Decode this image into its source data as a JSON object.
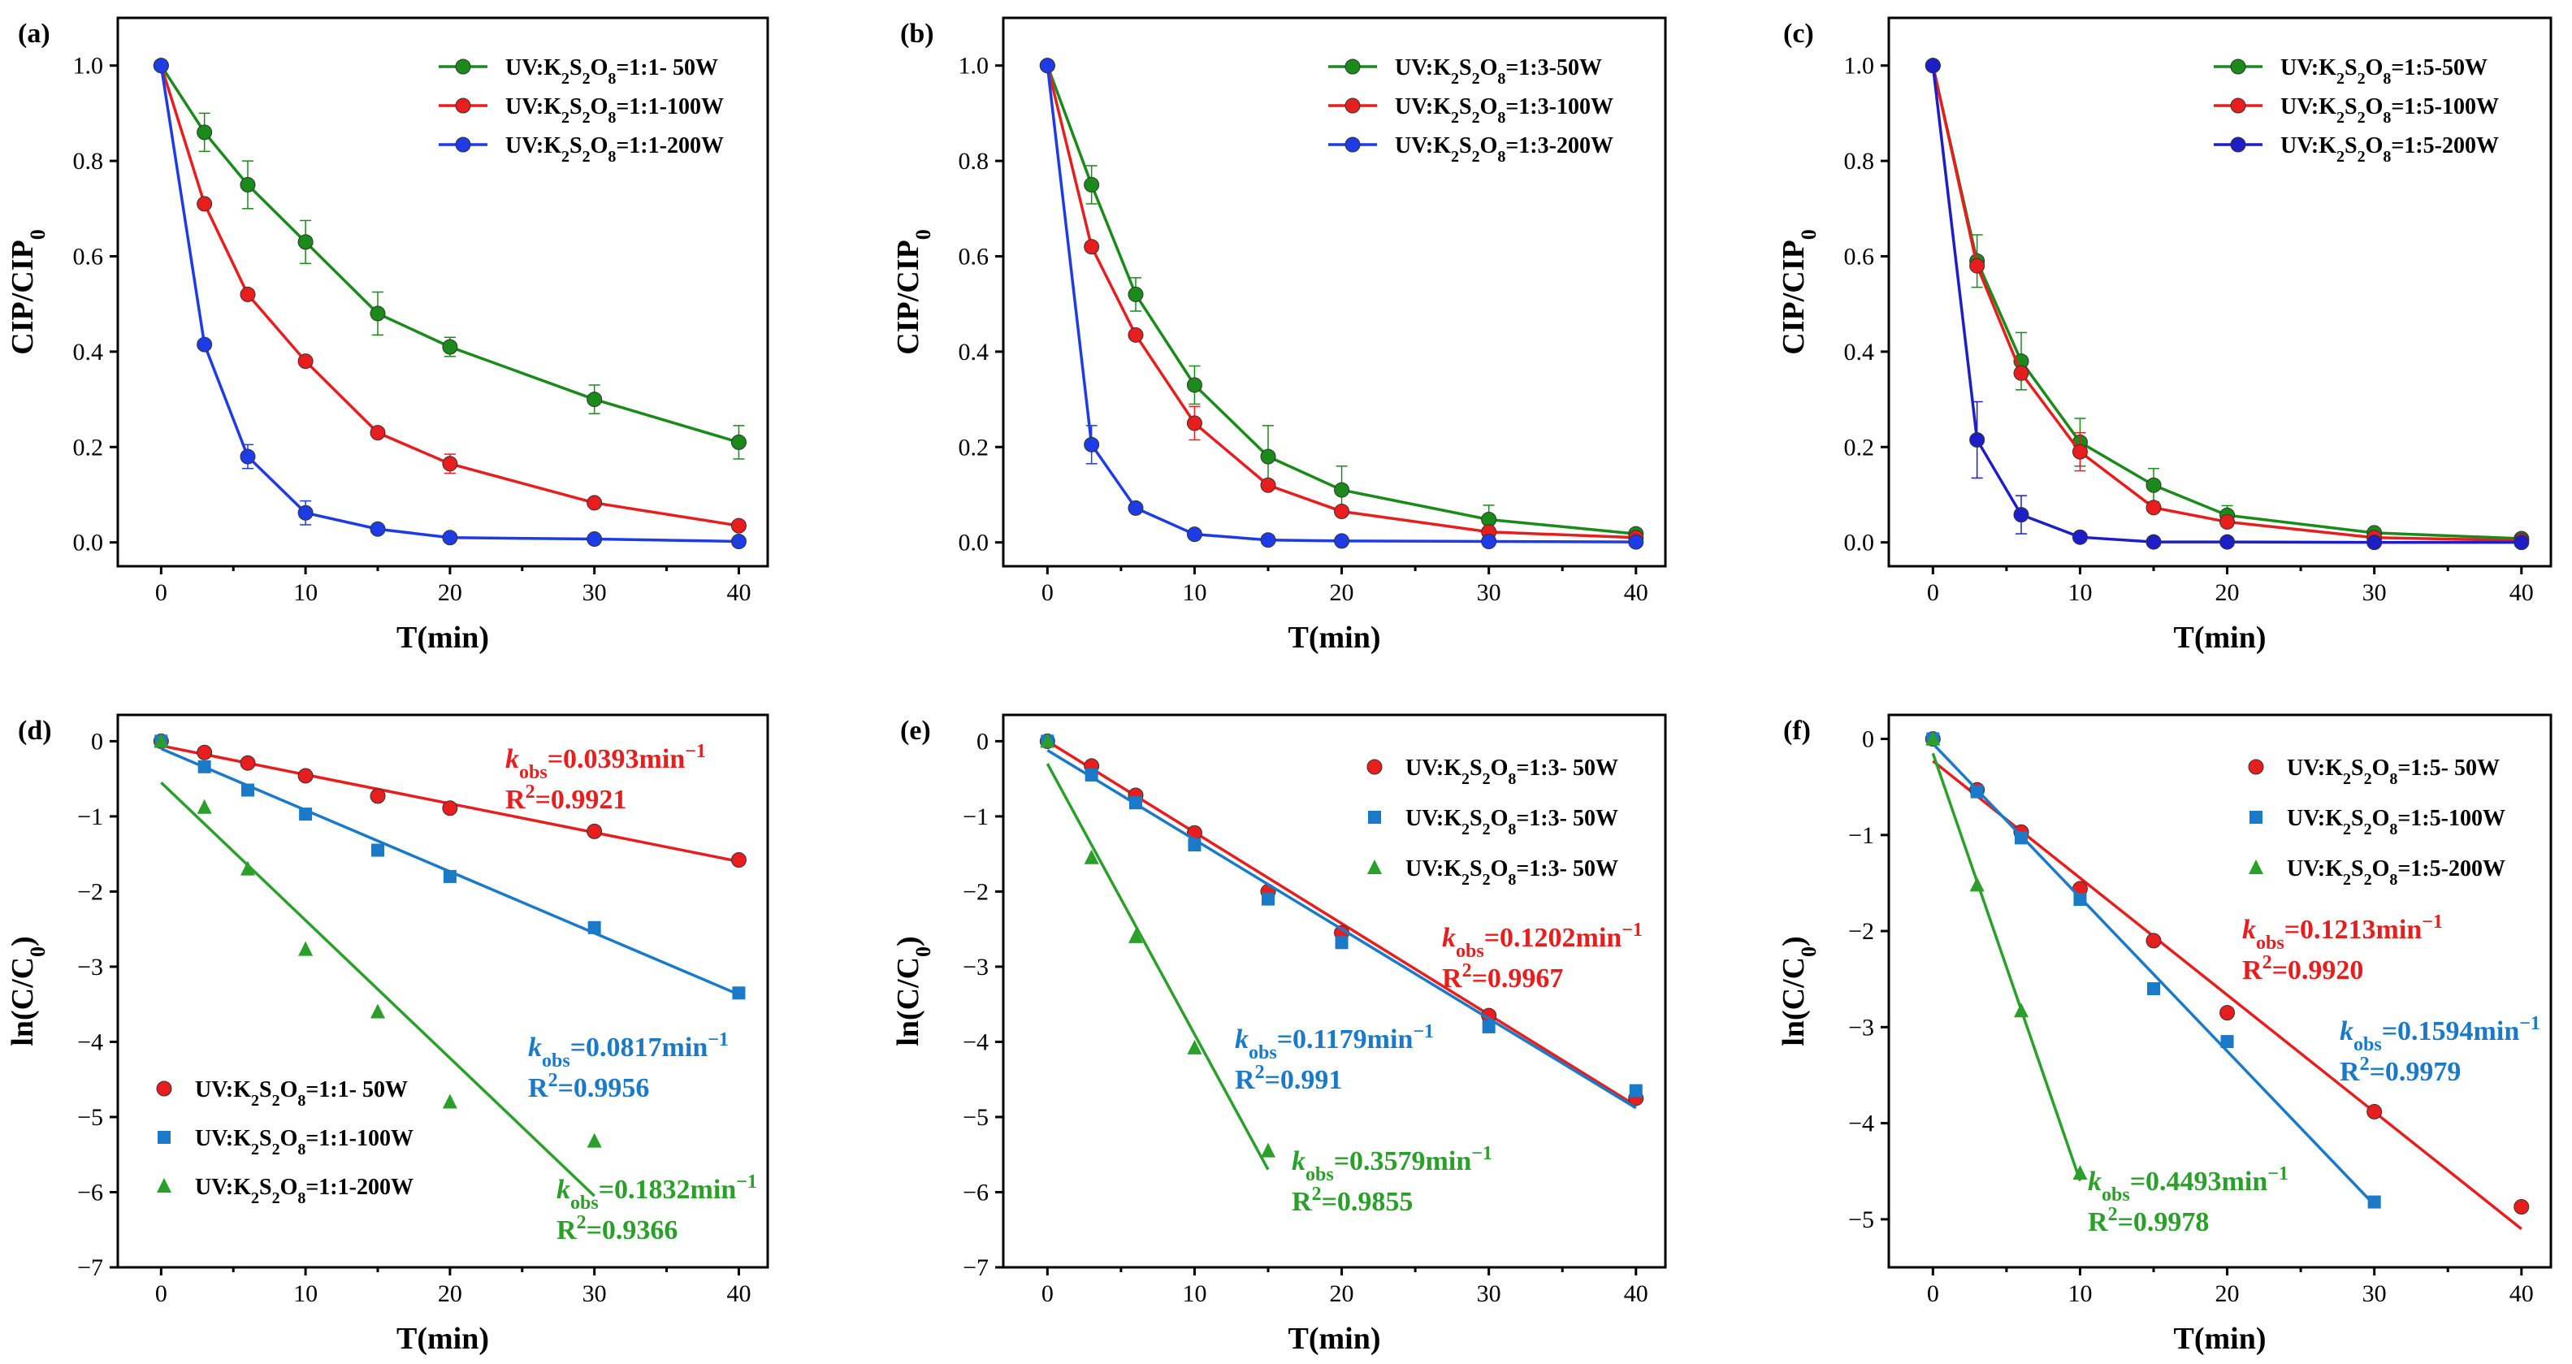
{
  "chart_data": [
    {
      "panel": "(a)",
      "type": "line",
      "xlabel": "T(min)",
      "ylabel": [
        "CIP/CIP",
        "0"
      ],
      "xlim": [
        -3,
        42
      ],
      "ylim": [
        -0.05,
        1.1
      ],
      "xticks": [
        0,
        10,
        20,
        30,
        40
      ],
      "yticks": [
        0.0,
        0.2,
        0.4,
        0.6,
        0.8,
        1.0
      ],
      "ydecimals": 1,
      "legend_position": "top-right",
      "x": [
        0,
        3,
        6,
        10,
        15,
        20,
        30,
        40
      ],
      "series": [
        {
          "name": [
            "UV:K",
            "2",
            "S",
            "2",
            "O",
            "8",
            "=1:1- 50W"
          ],
          "color": "#1a8a1a",
          "marker": "circle",
          "values": [
            1.0,
            0.86,
            0.75,
            0.63,
            0.48,
            0.41,
            0.3,
            0.21
          ],
          "errors": [
            0,
            0.04,
            0.05,
            0.045,
            0.045,
            0.02,
            0.03,
            0.035
          ]
        },
        {
          "name": [
            "UV:K",
            "2",
            "S",
            "2",
            "O",
            "8",
            "=1:1-100W"
          ],
          "color": "#e81e1e",
          "marker": "circle",
          "values": [
            1.0,
            0.71,
            0.52,
            0.38,
            0.23,
            0.165,
            0.083,
            0.035
          ],
          "errors": [
            0,
            0,
            0,
            0,
            0,
            0.02,
            0,
            0
          ]
        },
        {
          "name": [
            "UV:K",
            "2",
            "S",
            "2",
            "O",
            "8",
            "=1:1-200W"
          ],
          "color": "#1e3ce6",
          "marker": "circle",
          "values": [
            1.0,
            0.415,
            0.18,
            0.062,
            0.028,
            0.01,
            0.007,
            0.002
          ],
          "errors": [
            0,
            0,
            0.025,
            0.025,
            0,
            0,
            0,
            0
          ]
        }
      ]
    },
    {
      "panel": "(b)",
      "type": "line",
      "xlabel": "T(min)",
      "ylabel": [
        "CIP/CIP",
        "0"
      ],
      "xlim": [
        -3,
        42
      ],
      "ylim": [
        -0.05,
        1.1
      ],
      "xticks": [
        0,
        10,
        20,
        30,
        40
      ],
      "yticks": [
        0.0,
        0.2,
        0.4,
        0.6,
        0.8,
        1.0
      ],
      "ydecimals": 1,
      "legend_position": "top-right",
      "x": [
        0,
        3,
        6,
        10,
        15,
        20,
        30,
        40
      ],
      "series": [
        {
          "name": [
            "UV:K",
            "2",
            "S",
            "2",
            "O",
            "8",
            "=1:3-50W"
          ],
          "color": "#1a8a1a",
          "marker": "circle",
          "values": [
            1.0,
            0.75,
            0.52,
            0.33,
            0.18,
            0.11,
            0.048,
            0.018
          ],
          "errors": [
            0,
            0.04,
            0.035,
            0.04,
            0.065,
            0.05,
            0.03,
            0.01
          ]
        },
        {
          "name": [
            "UV:K",
            "2",
            "S",
            "2",
            "O",
            "8",
            "=1:3-100W"
          ],
          "color": "#e81e1e",
          "marker": "circle",
          "values": [
            1.0,
            0.62,
            0.435,
            0.25,
            0.12,
            0.065,
            0.022,
            0.01
          ],
          "errors": [
            0,
            0,
            0,
            0.035,
            0,
            0,
            0,
            0
          ]
        },
        {
          "name": [
            "UV:K",
            "2",
            "S",
            "2",
            "O",
            "8",
            "=1:3-200W"
          ],
          "color": "#1e3ce6",
          "marker": "circle",
          "values": [
            1.0,
            0.205,
            0.072,
            0.017,
            0.005,
            0.003,
            0.002,
            0.001
          ],
          "errors": [
            0,
            0.04,
            0,
            0,
            0,
            0,
            0,
            0
          ]
        }
      ]
    },
    {
      "panel": "(c)",
      "type": "line",
      "xlabel": "T(min)",
      "ylabel": [
        "CIP/CIP",
        "0"
      ],
      "xlim": [
        -3,
        42
      ],
      "ylim": [
        -0.05,
        1.1
      ],
      "xticks": [
        0,
        10,
        20,
        30,
        40
      ],
      "yticks": [
        0.0,
        0.2,
        0.4,
        0.6,
        0.8,
        1.0
      ],
      "ydecimals": 1,
      "legend_position": "top-right",
      "x": [
        0,
        3,
        6,
        10,
        15,
        20,
        30,
        40
      ],
      "series": [
        {
          "name": [
            "UV:K",
            "2",
            "S",
            "2",
            "O",
            "8",
            "=1:5-50W"
          ],
          "color": "#1a8a1a",
          "marker": "circle",
          "values": [
            1.0,
            0.59,
            0.38,
            0.21,
            0.12,
            0.057,
            0.02,
            0.008
          ],
          "errors": [
            0,
            0.055,
            0.06,
            0.05,
            0.035,
            0.02,
            0,
            0
          ]
        },
        {
          "name": [
            "UV:K",
            "2",
            "S",
            "2",
            "O",
            "8",
            "=1:5-100W"
          ],
          "color": "#e81e1e",
          "marker": "circle",
          "values": [
            1.0,
            0.58,
            0.355,
            0.19,
            0.073,
            0.043,
            0.01,
            0.004
          ],
          "errors": [
            0,
            0,
            0,
            0.04,
            0,
            0,
            0,
            0
          ]
        },
        {
          "name": [
            "UV:K",
            "2",
            "S",
            "2",
            "O",
            "8",
            "=1:5-200W"
          ],
          "color": "#1e1ec8",
          "marker": "circle",
          "values": [
            1.0,
            0.215,
            0.058,
            0.011,
            0.001,
            0.001,
            0.0,
            0.0
          ],
          "errors": [
            0,
            0.08,
            0.04,
            0,
            0,
            0,
            0,
            0
          ]
        }
      ]
    },
    {
      "panel": "(d)",
      "type": "scatter",
      "xlabel": "T(min)",
      "ylabel": [
        "ln(C/C",
        "0",
        ")"
      ],
      "xlim": [
        -3,
        42
      ],
      "ylim": [
        -7,
        0.35
      ],
      "xticks": [
        0,
        10,
        20,
        30,
        40
      ],
      "yticks": [
        -7,
        -6,
        -5,
        -4,
        -3,
        -2,
        -1,
        0
      ],
      "ydecimals": 0,
      "legend_position": "bottom-left",
      "series": [
        {
          "name": [
            "UV:K",
            "2",
            "S",
            "2",
            "O",
            "8",
            "=1:1- 50W"
          ],
          "color": "#e81e1e",
          "marker": "circle",
          "x": [
            0,
            3,
            6,
            10,
            15,
            20,
            30,
            40
          ],
          "values": [
            0,
            -0.15,
            -0.29,
            -0.46,
            -0.73,
            -0.89,
            -1.2,
            -1.58
          ],
          "fit": [
            [
              0,
              -0.06
            ],
            [
              40,
              -1.6
            ]
          ],
          "annotation": {
            "k": "0.0393",
            "r2": "0.9921"
          }
        },
        {
          "name": [
            "UV:K",
            "2",
            "S",
            "2",
            "O",
            "8",
            "=1:1-100W"
          ],
          "color": "#1a7ac8",
          "marker": "square",
          "x": [
            0,
            3,
            6,
            10,
            15,
            20,
            30,
            40
          ],
          "values": [
            0,
            -0.34,
            -0.65,
            -0.97,
            -1.45,
            -1.8,
            -2.48,
            -3.35
          ],
          "fit": [
            [
              0,
              -0.1
            ],
            [
              40,
              -3.37
            ]
          ],
          "annotation": {
            "k": "0.0817",
            "r2": "0.9956"
          }
        },
        {
          "name": [
            "UV:K",
            "2",
            "S",
            "2",
            "O",
            "8",
            "=1:1-200W"
          ],
          "color": "#2aa02a",
          "marker": "triangle",
          "x": [
            0,
            3,
            6,
            10,
            15,
            20,
            30
          ],
          "values": [
            0,
            -0.88,
            -1.7,
            -2.77,
            -3.6,
            -4.8,
            -5.32
          ],
          "fit": [
            [
              0,
              -0.55
            ],
            [
              30,
              -6.05
            ]
          ],
          "annotation": {
            "k": "0.1832",
            "r2": "0.9366"
          }
        }
      ]
    },
    {
      "panel": "(e)",
      "type": "scatter",
      "xlabel": "T(min)",
      "ylabel": [
        "ln(C/C",
        "0",
        ")"
      ],
      "xlim": [
        -3,
        42
      ],
      "ylim": [
        -7,
        0.35
      ],
      "xticks": [
        0,
        10,
        20,
        30,
        40
      ],
      "yticks": [
        -7,
        -6,
        -5,
        -4,
        -3,
        -2,
        -1,
        0
      ],
      "ydecimals": 0,
      "legend_position": "top-right",
      "series": [
        {
          "name": [
            "UV:K",
            "2",
            "S",
            "2",
            "O",
            "8",
            "=1:3- 50W"
          ],
          "color": "#e81e1e",
          "marker": "circle",
          "x": [
            0,
            3,
            6,
            10,
            15,
            20,
            30,
            40
          ],
          "values": [
            0,
            -0.33,
            -0.72,
            -1.22,
            -2.0,
            -2.55,
            -3.65,
            -4.75
          ],
          "fit": [
            [
              0,
              0.0
            ],
            [
              40,
              -4.85
            ]
          ],
          "annotation": {
            "k": "0.1202",
            "r2": "0.9967"
          }
        },
        {
          "name": [
            "UV:K",
            "2",
            "S",
            "2",
            "O",
            "8",
            "=1:3- 50W"
          ],
          "color": "#1a7ac8",
          "marker": "square",
          "x": [
            0,
            3,
            6,
            10,
            15,
            20,
            30,
            40
          ],
          "values": [
            0,
            -0.45,
            -0.82,
            -1.38,
            -2.1,
            -2.68,
            -3.8,
            -4.65
          ],
          "fit": [
            [
              0,
              -0.12
            ],
            [
              40,
              -4.88
            ]
          ],
          "annotation": {
            "k": "0.1179",
            "r2": "0.991"
          }
        },
        {
          "name": [
            "UV:K",
            "2",
            "S",
            "2",
            "O",
            "8",
            "=1:3- 50W"
          ],
          "color": "#2aa02a",
          "marker": "triangle",
          "x": [
            0,
            3,
            6,
            10,
            15
          ],
          "values": [
            0,
            -1.55,
            -2.6,
            -4.08,
            -5.45
          ],
          "fit": [
            [
              0,
              -0.3
            ],
            [
              15,
              -5.7
            ]
          ],
          "annotation": {
            "k": "0.3579",
            "r2": "0.9855"
          }
        }
      ]
    },
    {
      "panel": "(f)",
      "type": "scatter",
      "xlabel": "T(min)",
      "ylabel": [
        "ln(C/C",
        "0",
        ")"
      ],
      "xlim": [
        -3,
        42
      ],
      "ylim": [
        -5.5,
        0.25
      ],
      "xticks": [
        0,
        10,
        20,
        30,
        40
      ],
      "yticks": [
        -5,
        -4,
        -3,
        -2,
        -1,
        0
      ],
      "ydecimals": 0,
      "legend_position": "top-right",
      "series": [
        {
          "name": [
            "UV:K",
            "2",
            "S",
            "2",
            "O",
            "8",
            "=1:5- 50W"
          ],
          "color": "#e81e1e",
          "marker": "circle",
          "x": [
            0,
            3,
            6,
            10,
            15,
            20,
            30,
            40
          ],
          "values": [
            0,
            -0.53,
            -0.97,
            -1.56,
            -2.1,
            -2.85,
            -3.88,
            -4.87
          ],
          "fit": [
            [
              0,
              -0.23
            ],
            [
              40,
              -5.1
            ]
          ],
          "annotation": {
            "k": "0.1213",
            "r2": "0.9920"
          }
        },
        {
          "name": [
            "UV:K",
            "2",
            "S",
            "2",
            "O",
            "8",
            "=1:5-100W"
          ],
          "color": "#1a7ac8",
          "marker": "square",
          "x": [
            0,
            3,
            6,
            10,
            15,
            20,
            30
          ],
          "values": [
            0,
            -0.55,
            -1.03,
            -1.67,
            -2.6,
            -3.15,
            -4.82
          ],
          "fit": [
            [
              0,
              -0.05
            ],
            [
              30,
              -4.85
            ]
          ],
          "annotation": {
            "k": "0.1594",
            "r2": "0.9979"
          }
        },
        {
          "name": [
            "UV:K",
            "2",
            "S",
            "2",
            "O",
            "8",
            "=1:5-200W"
          ],
          "color": "#2aa02a",
          "marker": "triangle",
          "x": [
            0,
            3,
            6,
            10
          ],
          "values": [
            0,
            -1.52,
            -2.83,
            -4.52
          ],
          "fit": [
            [
              0,
              -0.15
            ],
            [
              10,
              -4.6
            ]
          ],
          "annotation": {
            "k": "0.4493",
            "r2": "0.9978"
          }
        }
      ]
    }
  ],
  "annotation_parts": {
    "k_symbol": "k",
    "k_sub": "obs",
    "k_eq": "=",
    "k_unit": "min",
    "k_exp": "−1",
    "r2_prefix": "R",
    "r2_exp": "2",
    "r2_eq": "="
  }
}
